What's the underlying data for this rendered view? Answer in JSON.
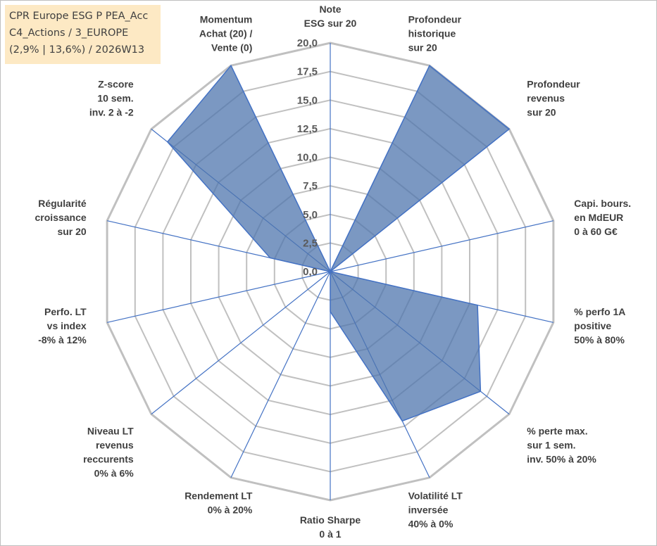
{
  "info_box": {
    "line1": "CPR Europe ESG P PEA_Acc",
    "line2": "C4_Actions / 3_EUROPE",
    "line3": "(2,9% | 13,6%) / 2026W13"
  },
  "colors": {
    "grid": "#c0c0c0",
    "spoke": "#4472c4",
    "fill": "#4f76ad",
    "fill_opacity": 0.75,
    "series_stroke": "#4472c4",
    "info_box_bg": "#fde9c4"
  },
  "chart_data": {
    "type": "radar",
    "rmin": 0,
    "rmax": 20,
    "tick_step": 2.5,
    "tick_labels": [
      "0,0",
      "2,5",
      "5,0",
      "7,5",
      "10,0",
      "12,5",
      "15,0",
      "17,5",
      "20,0"
    ],
    "grid": true,
    "axes": [
      [
        "Note",
        "ESG sur 20"
      ],
      [
        "Profondeur",
        "historique",
        "sur 20"
      ],
      [
        "Profondeur",
        "revenus",
        "sur 20"
      ],
      [
        "Capi. bours.",
        "en MdEUR",
        "0 à 60 G€"
      ],
      [
        "% perfo 1A",
        "positive",
        "50% à 80%"
      ],
      [
        "% perte max.",
        "sur 1 sem.",
        "inv. 50% à 20%"
      ],
      [
        "Volatilité LT",
        "inversée",
        "40% à 0%"
      ],
      [
        "Ratio Sharpe",
        "0 à 1"
      ],
      [
        "Rendement LT",
        "0% à 20%"
      ],
      [
        "Niveau LT",
        "revenus",
        "reccurents",
        "0% à 6%"
      ],
      [
        "Perfo. LT",
        "vs index",
        "-8% à 12%"
      ],
      [
        "Régularité",
        "croissance",
        "sur 20"
      ],
      [
        "Z-score",
        "10 sem.",
        "inv. 2 à -2"
      ],
      [
        "Momentum",
        "Achat (20) /",
        "Vente (0)"
      ]
    ],
    "series": [
      {
        "values": [
          0,
          20,
          20,
          0,
          13.2,
          16.8,
          14.5,
          3.5,
          0,
          0,
          0,
          5.4,
          18.2,
          20
        ]
      }
    ]
  }
}
